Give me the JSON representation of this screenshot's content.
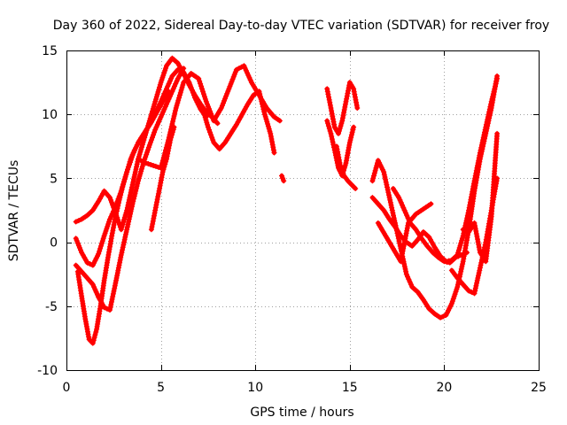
{
  "chart_data": {
    "type": "scatter",
    "title": "Day 360 of 2022, Sidereal Day-to-day VTEC variation (SDTVAR) for receiver froy",
    "xlabel": "GPS time / hours",
    "ylabel": "SDTVAR / TECUs",
    "xlim": [
      0,
      25
    ],
    "ylim": [
      -10,
      15
    ],
    "x_ticks": [
      0,
      5,
      10,
      15,
      20,
      25
    ],
    "x_tick_labels": [
      "0",
      "5",
      "10",
      "15",
      "20",
      "25"
    ],
    "y_ticks": [
      -10,
      -5,
      0,
      5,
      10,
      15
    ],
    "y_tick_labels": [
      "-10",
      "-5",
      "0",
      "5",
      "10",
      "15"
    ],
    "grid": true,
    "marker": "+",
    "color": "#ff0000",
    "series": [
      {
        "name": "arc-1",
        "x": [
          0.5,
          0.8,
          1.1,
          1.4,
          1.7,
          2.0,
          2.3,
          2.6,
          2.9,
          3.2,
          3.5,
          3.8,
          4.1,
          4.4,
          4.7,
          5.0,
          5.3,
          5.6,
          5.9,
          6.2,
          6.5,
          6.8,
          7.1,
          7.4,
          7.7,
          8.0
        ],
        "y": [
          1.6,
          1.8,
          2.1,
          2.5,
          3.2,
          4.0,
          3.5,
          2.3,
          1.0,
          2.5,
          4.5,
          6.5,
          8.0,
          9.5,
          11.0,
          12.5,
          13.8,
          14.4,
          14.0,
          13.2,
          12.3,
          11.5,
          10.8,
          10.2,
          9.8,
          9.3
        ]
      },
      {
        "name": "arc-2",
        "x": [
          0.5,
          0.8,
          1.1,
          1.4,
          1.7,
          2.0,
          2.3,
          2.6,
          2.9,
          3.2,
          3.5,
          3.8,
          4.1,
          4.4,
          4.7,
          5.0,
          5.3,
          5.6,
          5.9,
          6.2,
          6.5,
          6.8,
          7.1,
          7.4
        ],
        "y": [
          0.3,
          -0.8,
          -1.6,
          -1.8,
          -0.9,
          0.5,
          1.8,
          2.8,
          4.0,
          5.5,
          6.8,
          7.8,
          8.5,
          9.2,
          10.0,
          11.0,
          12.0,
          13.0,
          13.5,
          13.3,
          12.5,
          11.3,
          10.4,
          9.8
        ]
      },
      {
        "name": "arc-3",
        "x": [
          0.5,
          0.8,
          1.1,
          1.4,
          1.7,
          2.0,
          2.3,
          2.6,
          2.9,
          3.2,
          3.5,
          3.8,
          4.1,
          4.4,
          4.7,
          5.0,
          5.3,
          5.6,
          5.9,
          6.2
        ],
        "y": [
          -1.8,
          -2.3,
          -2.8,
          -3.3,
          -4.3,
          -5.1,
          -5.3,
          -3.2,
          -1.0,
          1.0,
          3.0,
          4.8,
          6.3,
          7.6,
          8.8,
          9.8,
          10.8,
          11.8,
          12.8,
          13.6
        ]
      },
      {
        "name": "arc-4",
        "x": [
          0.6,
          0.8,
          1.0,
          1.2,
          1.4,
          1.6,
          1.8,
          2.0,
          2.2,
          2.4,
          2.6,
          2.8,
          3.0,
          3.2,
          3.4,
          3.6,
          3.9,
          4.2,
          4.5,
          4.8,
          5.1,
          5.4
        ],
        "y": [
          -2.3,
          -4.2,
          -6.0,
          -7.6,
          -7.9,
          -6.8,
          -5.0,
          -3.0,
          -1.2,
          0.5,
          2.0,
          3.3,
          4.5,
          5.5,
          6.5,
          7.2,
          8.0,
          8.7,
          9.4,
          10.2,
          11.0,
          11.8
        ]
      },
      {
        "name": "arc-5",
        "x": [
          3.8,
          4.2,
          4.6,
          5.0,
          5.4,
          5.8,
          6.2,
          6.6,
          7.0,
          7.4,
          7.8,
          8.2,
          8.6,
          9.0,
          9.4,
          9.8,
          10.2,
          10.6,
          11.0,
          11.3
        ],
        "y": [
          6.5,
          6.2,
          6.0,
          5.8,
          8.0,
          10.5,
          12.5,
          13.2,
          12.8,
          11.0,
          9.5,
          10.5,
          12.0,
          13.5,
          13.8,
          12.5,
          11.5,
          10.5,
          9.8,
          9.5
        ]
      },
      {
        "name": "arc-6",
        "x": [
          7.2,
          7.5,
          7.8,
          8.1,
          8.4,
          8.7,
          9.0,
          9.3,
          9.6,
          9.9,
          10.2,
          10.5,
          10.8,
          11.0
        ],
        "y": [
          10.5,
          9.0,
          7.8,
          7.3,
          7.8,
          8.5,
          9.2,
          10.0,
          10.8,
          11.5,
          11.8,
          10.0,
          8.5,
          7.0
        ]
      },
      {
        "name": "arc-7",
        "x": [
          4.5,
          4.7,
          4.9,
          5.1,
          5.3,
          5.5,
          5.7
        ],
        "y": [
          1.0,
          2.5,
          4.0,
          5.5,
          6.5,
          8.0,
          9.0
        ]
      },
      {
        "name": "arc-8",
        "x": [
          11.4,
          11.5
        ],
        "y": [
          5.2,
          4.8
        ]
      },
      {
        "name": "arc-9",
        "x": [
          13.8,
          14.0,
          14.2,
          14.4,
          14.6,
          14.8,
          15.0,
          15.2,
          15.4
        ],
        "y": [
          12.0,
          10.5,
          9.0,
          8.5,
          9.5,
          11.0,
          12.5,
          12.0,
          10.5
        ]
      },
      {
        "name": "arc-10",
        "x": [
          13.8,
          14.0,
          14.2,
          14.4,
          14.6,
          14.8,
          15.0,
          15.2
        ],
        "y": [
          9.5,
          8.5,
          7.2,
          5.8,
          5.2,
          6.2,
          7.8,
          9.0
        ]
      },
      {
        "name": "arc-11",
        "x": [
          14.3,
          14.5,
          14.7,
          14.9,
          15.1,
          15.3
        ],
        "y": [
          7.5,
          6.0,
          5.2,
          4.8,
          4.5,
          4.2
        ]
      },
      {
        "name": "arc-12",
        "x": [
          16.2,
          16.5,
          16.8,
          17.1,
          17.4,
          17.7,
          18.0,
          18.3,
          18.6,
          18.9,
          19.2,
          19.5,
          19.8,
          20.1,
          20.4,
          20.7,
          21.0,
          21.3,
          21.6,
          21.9,
          22.2,
          22.5,
          22.8
        ],
        "y": [
          4.8,
          6.4,
          5.5,
          3.5,
          1.5,
          -0.5,
          -2.5,
          -3.5,
          -3.9,
          -4.5,
          -5.2,
          -5.6,
          -5.9,
          -5.7,
          -4.8,
          -3.5,
          -1.5,
          1.0,
          4.0,
          6.5,
          8.5,
          10.5,
          13.0
        ]
      },
      {
        "name": "arc-13",
        "x": [
          16.2,
          16.5,
          16.8,
          17.1,
          17.4,
          17.7,
          18.0,
          18.3,
          18.6,
          18.9,
          19.2,
          19.5,
          19.8,
          20.1,
          20.4,
          20.7,
          21.0,
          21.3,
          21.6,
          21.9,
          22.2,
          22.5,
          22.8
        ],
        "y": [
          3.5,
          3.0,
          2.5,
          1.8,
          1.2,
          0.5,
          0.0,
          -0.3,
          0.2,
          0.8,
          0.4,
          -0.4,
          -1.1,
          -1.5,
          -1.4,
          -1.0,
          0.5,
          2.5,
          4.8,
          7.0,
          9.0,
          11.0,
          12.8
        ]
      },
      {
        "name": "arc-14",
        "x": [
          16.5,
          16.9,
          17.3,
          17.7,
          18.1,
          18.5,
          18.9,
          19.3
        ],
        "y": [
          1.5,
          0.5,
          -0.5,
          -1.5,
          1.5,
          2.2,
          2.6,
          3.0
        ]
      },
      {
        "name": "arc-15",
        "x": [
          17.3,
          17.6,
          17.9,
          18.2,
          18.5,
          18.8,
          19.1,
          19.4,
          19.7,
          20.0,
          20.3,
          20.6,
          20.9,
          21.2
        ],
        "y": [
          4.2,
          3.5,
          2.5,
          1.5,
          1.0,
          0.3,
          -0.3,
          -0.8,
          -1.2,
          -1.5,
          -1.6,
          -1.2,
          -1.0,
          -0.8
        ]
      },
      {
        "name": "arc-16",
        "x": [
          20.4,
          20.7,
          21.0,
          21.3,
          21.6,
          21.9,
          22.2,
          22.5,
          22.8
        ],
        "y": [
          -2.2,
          -2.8,
          -3.3,
          -3.8,
          -4.0,
          -2.0,
          0.0,
          2.5,
          5.0
        ]
      },
      {
        "name": "arc-17",
        "x": [
          21.0,
          21.3,
          21.6,
          21.9,
          22.2,
          22.5,
          22.8
        ],
        "y": [
          1.0,
          0.8,
          1.5,
          -0.8,
          -1.5,
          2.0,
          8.5
        ]
      }
    ]
  }
}
